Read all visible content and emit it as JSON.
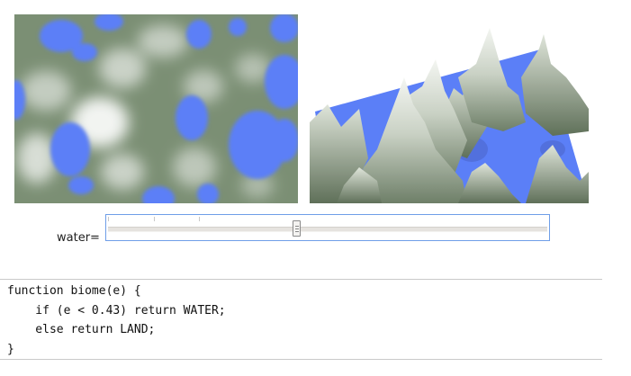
{
  "colors": {
    "water": "#5b7ff7",
    "land_dark": "#7b8f74",
    "land_light": "#ffffff"
  },
  "slider": {
    "label": "water=",
    "value_fraction": 0.43
  },
  "code": {
    "lines": [
      "function biome(e) {",
      "    if (e < 0.43) return WATER;",
      "    else return LAND;",
      "}"
    ]
  }
}
